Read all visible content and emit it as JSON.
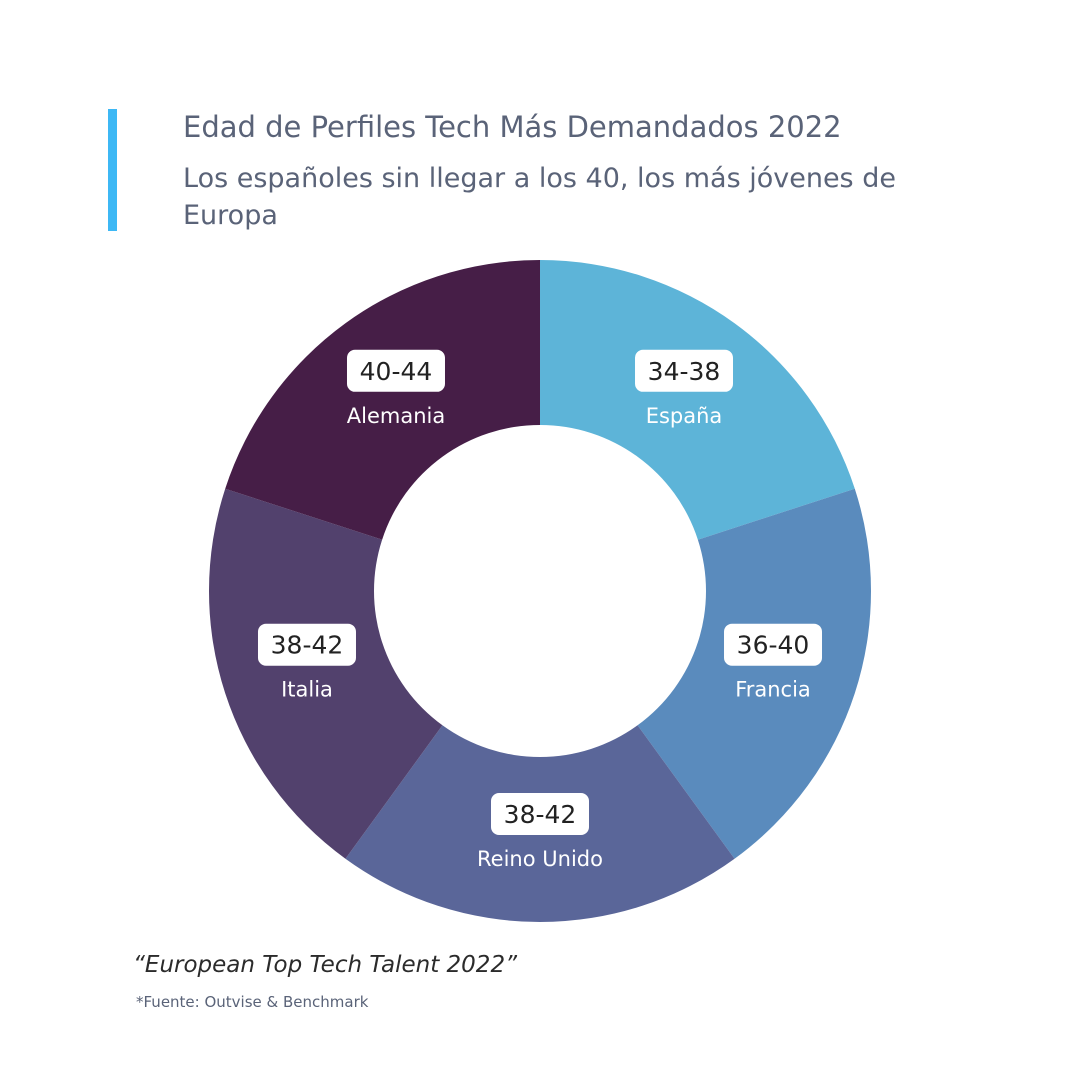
{
  "header": {
    "title": "Edad de Perfiles Tech Más Demandados 2022",
    "subtitle": "Los españoles sin llegar a los 40, los más jóvenes de Europa",
    "accent_color": "#3db8f5"
  },
  "chart_data": {
    "type": "pie",
    "donut": true,
    "categories": [
      "España",
      "Francia",
      "Reino Unido",
      "Italia",
      "Alemania"
    ],
    "age_ranges": [
      "34-38",
      "36-40",
      "38-42",
      "38-42",
      "40-44"
    ],
    "values": [
      20,
      20,
      20,
      20,
      20
    ],
    "colors": [
      "#5db4d8",
      "#5a8bbd",
      "#5a6699",
      "#52416d",
      "#461e47"
    ],
    "legend": "none"
  },
  "footer": {
    "quote": "“European Top Tech Talent 2022”",
    "source": "*Fuente: Outvise & Benchmark"
  }
}
